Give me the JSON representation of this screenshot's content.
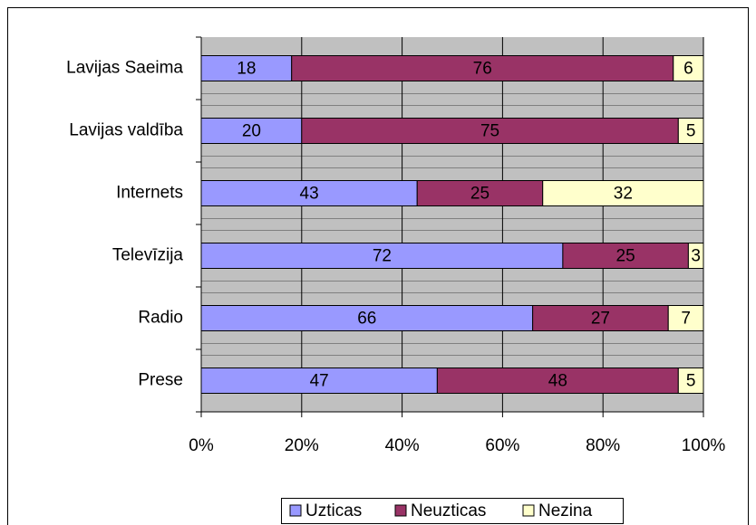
{
  "chart_data": {
    "type": "stacked-barh",
    "categories": [
      "Lavijas Saeima",
      "Lavijas valdība",
      "Internets",
      "Televīzija",
      "Radio",
      "Prese"
    ],
    "series": [
      {
        "name": "Uzticas",
        "color": "#9999ff",
        "values": [
          18,
          20,
          43,
          72,
          66,
          47
        ]
      },
      {
        "name": "Neuzticas",
        "color": "#993366",
        "values": [
          76,
          75,
          25,
          25,
          27,
          48
        ]
      },
      {
        "name": "Nezina",
        "color": "#ffffcc",
        "values": [
          6,
          5,
          32,
          3,
          7,
          5
        ]
      }
    ],
    "xlim": [
      0,
      100
    ],
    "xticks": [
      {
        "value": 0,
        "label": "0%"
      },
      {
        "value": 20,
        "label": "20%"
      },
      {
        "value": 40,
        "label": "40%"
      },
      {
        "value": 60,
        "label": "60%"
      },
      {
        "value": 80,
        "label": "80%"
      },
      {
        "value": 100,
        "label": "100%"
      }
    ],
    "grid": true,
    "legend": "bottom"
  }
}
